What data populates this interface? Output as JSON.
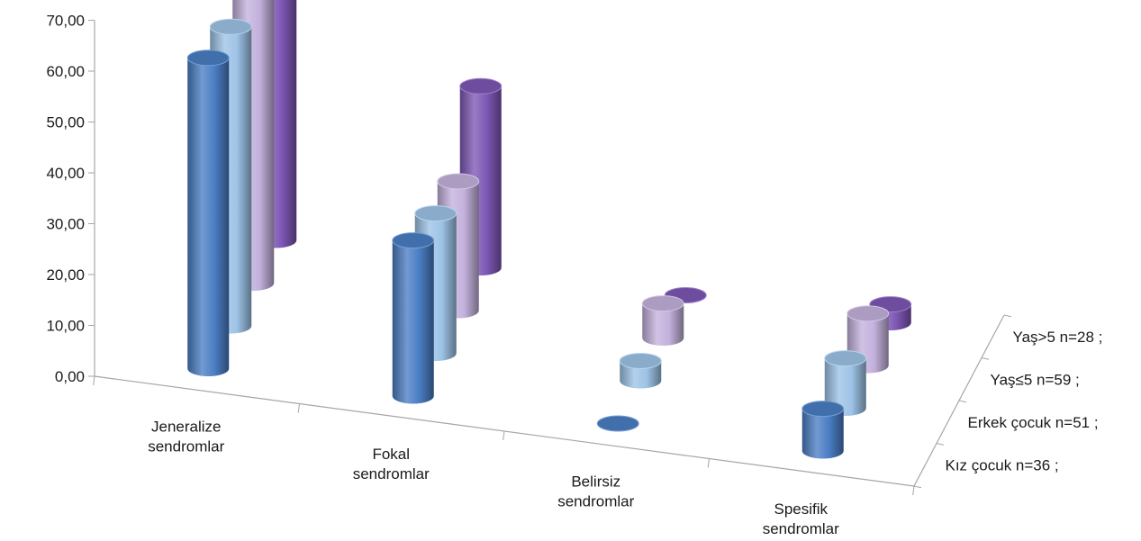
{
  "chart_data": {
    "type": "bar",
    "style": "3d-cylinder",
    "title": "",
    "xlabel": "",
    "ylabel": "",
    "ylim": [
      0,
      70
    ],
    "ytick_labels": [
      "0,00",
      "10,00",
      "20,00",
      "30,00",
      "40,00",
      "50,00",
      "60,00",
      "70,00"
    ],
    "grid": false,
    "categories": [
      [
        "Jeneralize",
        "sendromlar"
      ],
      [
        "Fokal",
        "sendromlar"
      ],
      [
        "Belirsiz",
        "sendromlar"
      ],
      [
        "Spesifik",
        "sendromlar"
      ]
    ],
    "series": [
      {
        "name": "Kız çocuk n=36 ;",
        "color": "#4a7ec4",
        "values": [
          61.1,
          30.6,
          0.0,
          8.3
        ]
      },
      {
        "name": "Erkek çocuk  n=51 ;",
        "color": "#9dc3e6",
        "values": [
          58.8,
          27.5,
          3.9,
          9.8
        ]
      },
      {
        "name": "Yaş≤5  n=59 ;",
        "color": "#c3b1dc",
        "values": [
          57.6,
          25.4,
          6.8,
          10.2
        ]
      },
      {
        "name": "Yaş>5 n=28 ;",
        "color": "#7d57b5",
        "values": [
          57.1,
          35.7,
          0.0,
          3.6
        ]
      }
    ]
  }
}
